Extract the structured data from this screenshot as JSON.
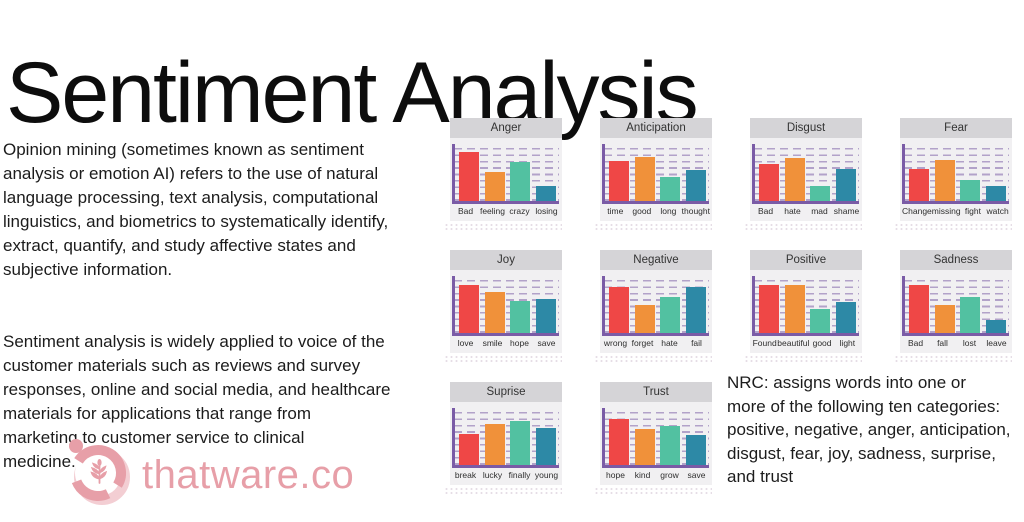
{
  "page": {
    "title": "Sentiment Analysis",
    "background": "#ffffff"
  },
  "intro": {
    "para1": "Opinion mining (sometimes known as sentiment\nanalysis or emotion AI) refers to the use of natural\nlanguage processing, text analysis, computational\nlinguistics, and biometrics to systematically identify,\nextract, quantify, and study affective states and\nsubjective information.",
    "para2": "Sentiment analysis is widely applied to voice of the\ncustomer materials such as reviews and survey\n responses, online and social media, and healthcare\nmaterials for applications that range from\nmarketing to customer service to clinical\nmedicine."
  },
  "nrc_note": "NRC: assigns words into one or\n more of the following ten categories:\npositive, negative, anger, anticipation,\n disgust, fear, joy, sadness, surprise,\nand trust",
  "logo": {
    "text": "thatware.co",
    "color": "#e79fa8",
    "icon": "wheat-aperture-icon"
  },
  "charts_style": {
    "bar_colors": [
      "#ef4746",
      "#f0913a",
      "#52c1a1",
      "#2d89a6"
    ],
    "axis_color": "#7a5ba6",
    "grid_dash_color": "#b2a2c9",
    "card_bg": "#f1f0f2",
    "header_bg": "#d5d4d7",
    "header_text": "#333333",
    "grid": "dashed-horizontal",
    "ylim": [
      0,
      1
    ]
  },
  "chart_data": [
    {
      "type": "bar",
      "title": "Anger",
      "categories": [
        "Bad",
        "feeling",
        "crazy",
        "losing"
      ],
      "values": [
        0.95,
        0.57,
        0.76,
        0.3
      ],
      "ylim": [
        0,
        1
      ]
    },
    {
      "type": "bar",
      "title": "Anticipation",
      "categories": [
        "time",
        "good",
        "long",
        "thought"
      ],
      "values": [
        0.78,
        0.85,
        0.48,
        0.6
      ],
      "ylim": [
        0,
        1
      ]
    },
    {
      "type": "bar",
      "title": "Disgust",
      "categories": [
        "Bad",
        "hate",
        "mad",
        "shame"
      ],
      "values": [
        0.72,
        0.83,
        0.3,
        0.62
      ],
      "ylim": [
        0,
        1
      ]
    },
    {
      "type": "bar",
      "title": "Fear",
      "categories": [
        "Change",
        "missing",
        "fight",
        "watch"
      ],
      "values": [
        0.62,
        0.8,
        0.42,
        0.3
      ],
      "ylim": [
        0,
        1
      ]
    },
    {
      "type": "bar",
      "title": "Joy",
      "categories": [
        "love",
        "smile",
        "hope",
        "save"
      ],
      "values": [
        0.93,
        0.8,
        0.63,
        0.66
      ],
      "ylim": [
        0,
        1
      ]
    },
    {
      "type": "bar",
      "title": "Negative",
      "categories": [
        "wrong",
        "forget",
        "hate",
        "fail"
      ],
      "values": [
        0.9,
        0.55,
        0.7,
        0.89
      ],
      "ylim": [
        0,
        1
      ]
    },
    {
      "type": "bar",
      "title": "Positive",
      "categories": [
        "Found",
        "beautiful",
        "good",
        "light"
      ],
      "values": [
        0.93,
        0.93,
        0.48,
        0.6
      ],
      "ylim": [
        0,
        1
      ]
    },
    {
      "type": "bar",
      "title": "Sadness",
      "categories": [
        "Bad",
        "fall",
        "lost",
        "leave"
      ],
      "values": [
        0.93,
        0.55,
        0.7,
        0.26
      ],
      "ylim": [
        0,
        1
      ]
    },
    {
      "type": "bar",
      "title": "Suprise",
      "categories": [
        "break",
        "lucky",
        "finally",
        "young"
      ],
      "values": [
        0.6,
        0.8,
        0.86,
        0.72
      ],
      "ylim": [
        0,
        1
      ]
    },
    {
      "type": "bar",
      "title": "Trust",
      "categories": [
        "hope",
        "kind",
        "grow",
        "save"
      ],
      "values": [
        0.9,
        0.7,
        0.77,
        0.58
      ],
      "ylim": [
        0,
        1
      ]
    }
  ]
}
